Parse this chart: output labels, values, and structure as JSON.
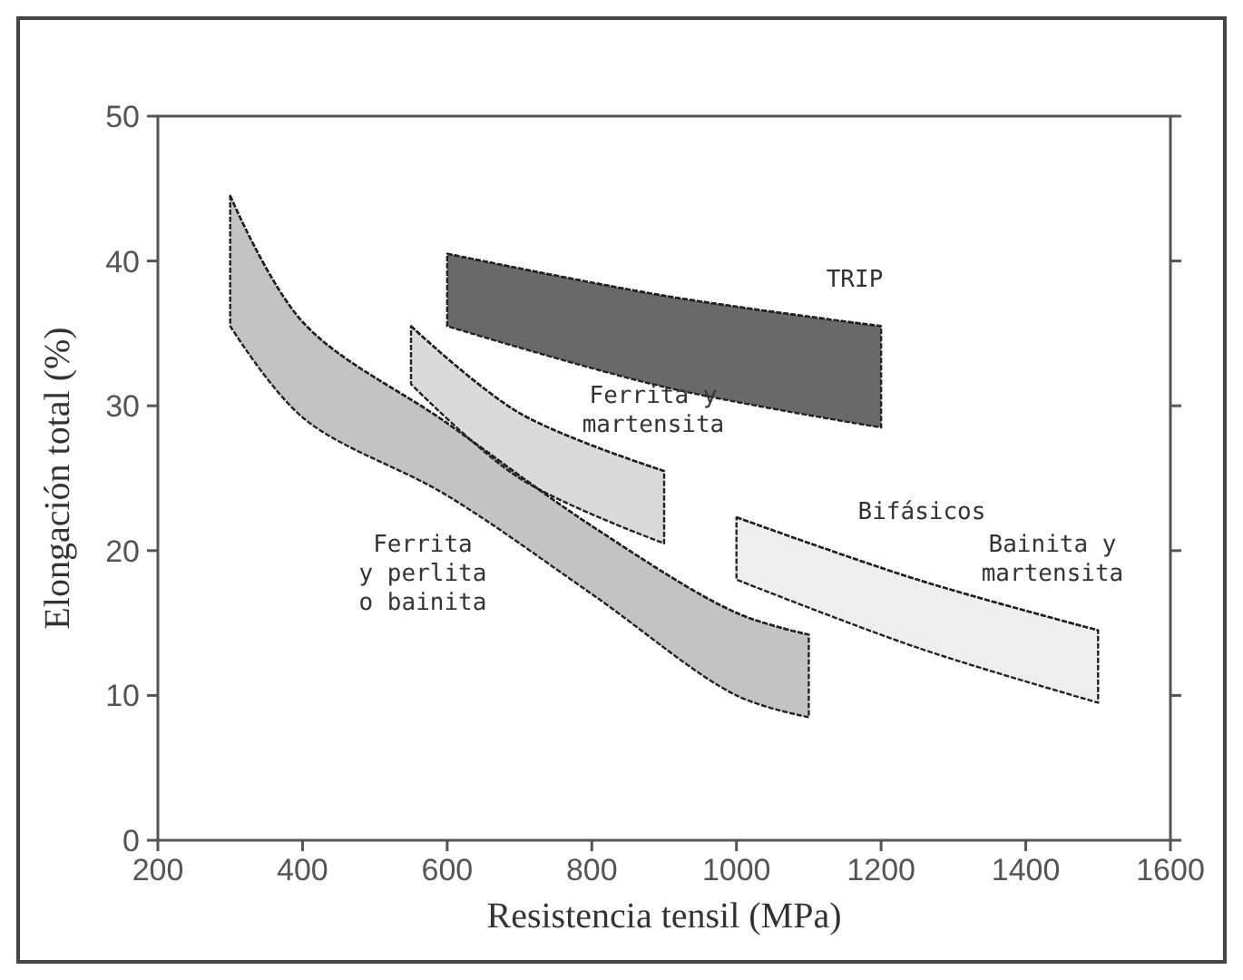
{
  "chart_data": {
    "type": "line",
    "marker": "none",
    "line_style": "dashed",
    "xlabel": "Resistencia tensil  (MPa)",
    "ylabel": "Elongación total  (%)",
    "xlim": [
      200,
      1600
    ],
    "ylim": [
      0,
      50
    ],
    "xticks": [
      200,
      400,
      600,
      800,
      1000,
      1200,
      1400,
      1600
    ],
    "yticks": [
      0,
      10,
      20,
      30,
      40,
      50
    ],
    "series": [
      {
        "name": "Ferrita y perlita o bainita",
        "color": "#222222",
        "x": [
          300,
          400,
          600,
          800,
          1000,
          1100
        ],
        "values": [
          44.5,
          35.8,
          28.8,
          21.7,
          15.7,
          14.2
        ],
        "upper": [
          44.5,
          35.8,
          28.8,
          21.7,
          15.7,
          14.2
        ],
        "lower": [
          35.5,
          29.2,
          23.8,
          17,
          10,
          8.5
        ]
      },
      {
        "name": "Ferrita y martensita",
        "color": "#222222",
        "x": [
          550,
          700,
          900
        ],
        "values": [
          35.5,
          29.5,
          25.5
        ],
        "upper": [
          35.5,
          29.5,
          25.5
        ],
        "lower": [
          31.5,
          25,
          20.5
        ]
      },
      {
        "name": "TRIP",
        "color": "#222222",
        "x": [
          600,
          900,
          1200
        ],
        "values": [
          40.5,
          37.6,
          35.5
        ],
        "upper": [
          40.5,
          37.6,
          35.5
        ],
        "lower": [
          35.5,
          31.3,
          28.5
        ]
      },
      {
        "name": "Bainita y martensita",
        "color": "#222222",
        "x": [
          1000,
          1250,
          1500
        ],
        "values": [
          22.3,
          18,
          14.5
        ],
        "upper": [
          22.3,
          18,
          14.5
        ],
        "lower": [
          18,
          13.3,
          9.5
        ]
      }
    ],
    "annotations": [
      "Bifásicos"
    ]
  }
}
